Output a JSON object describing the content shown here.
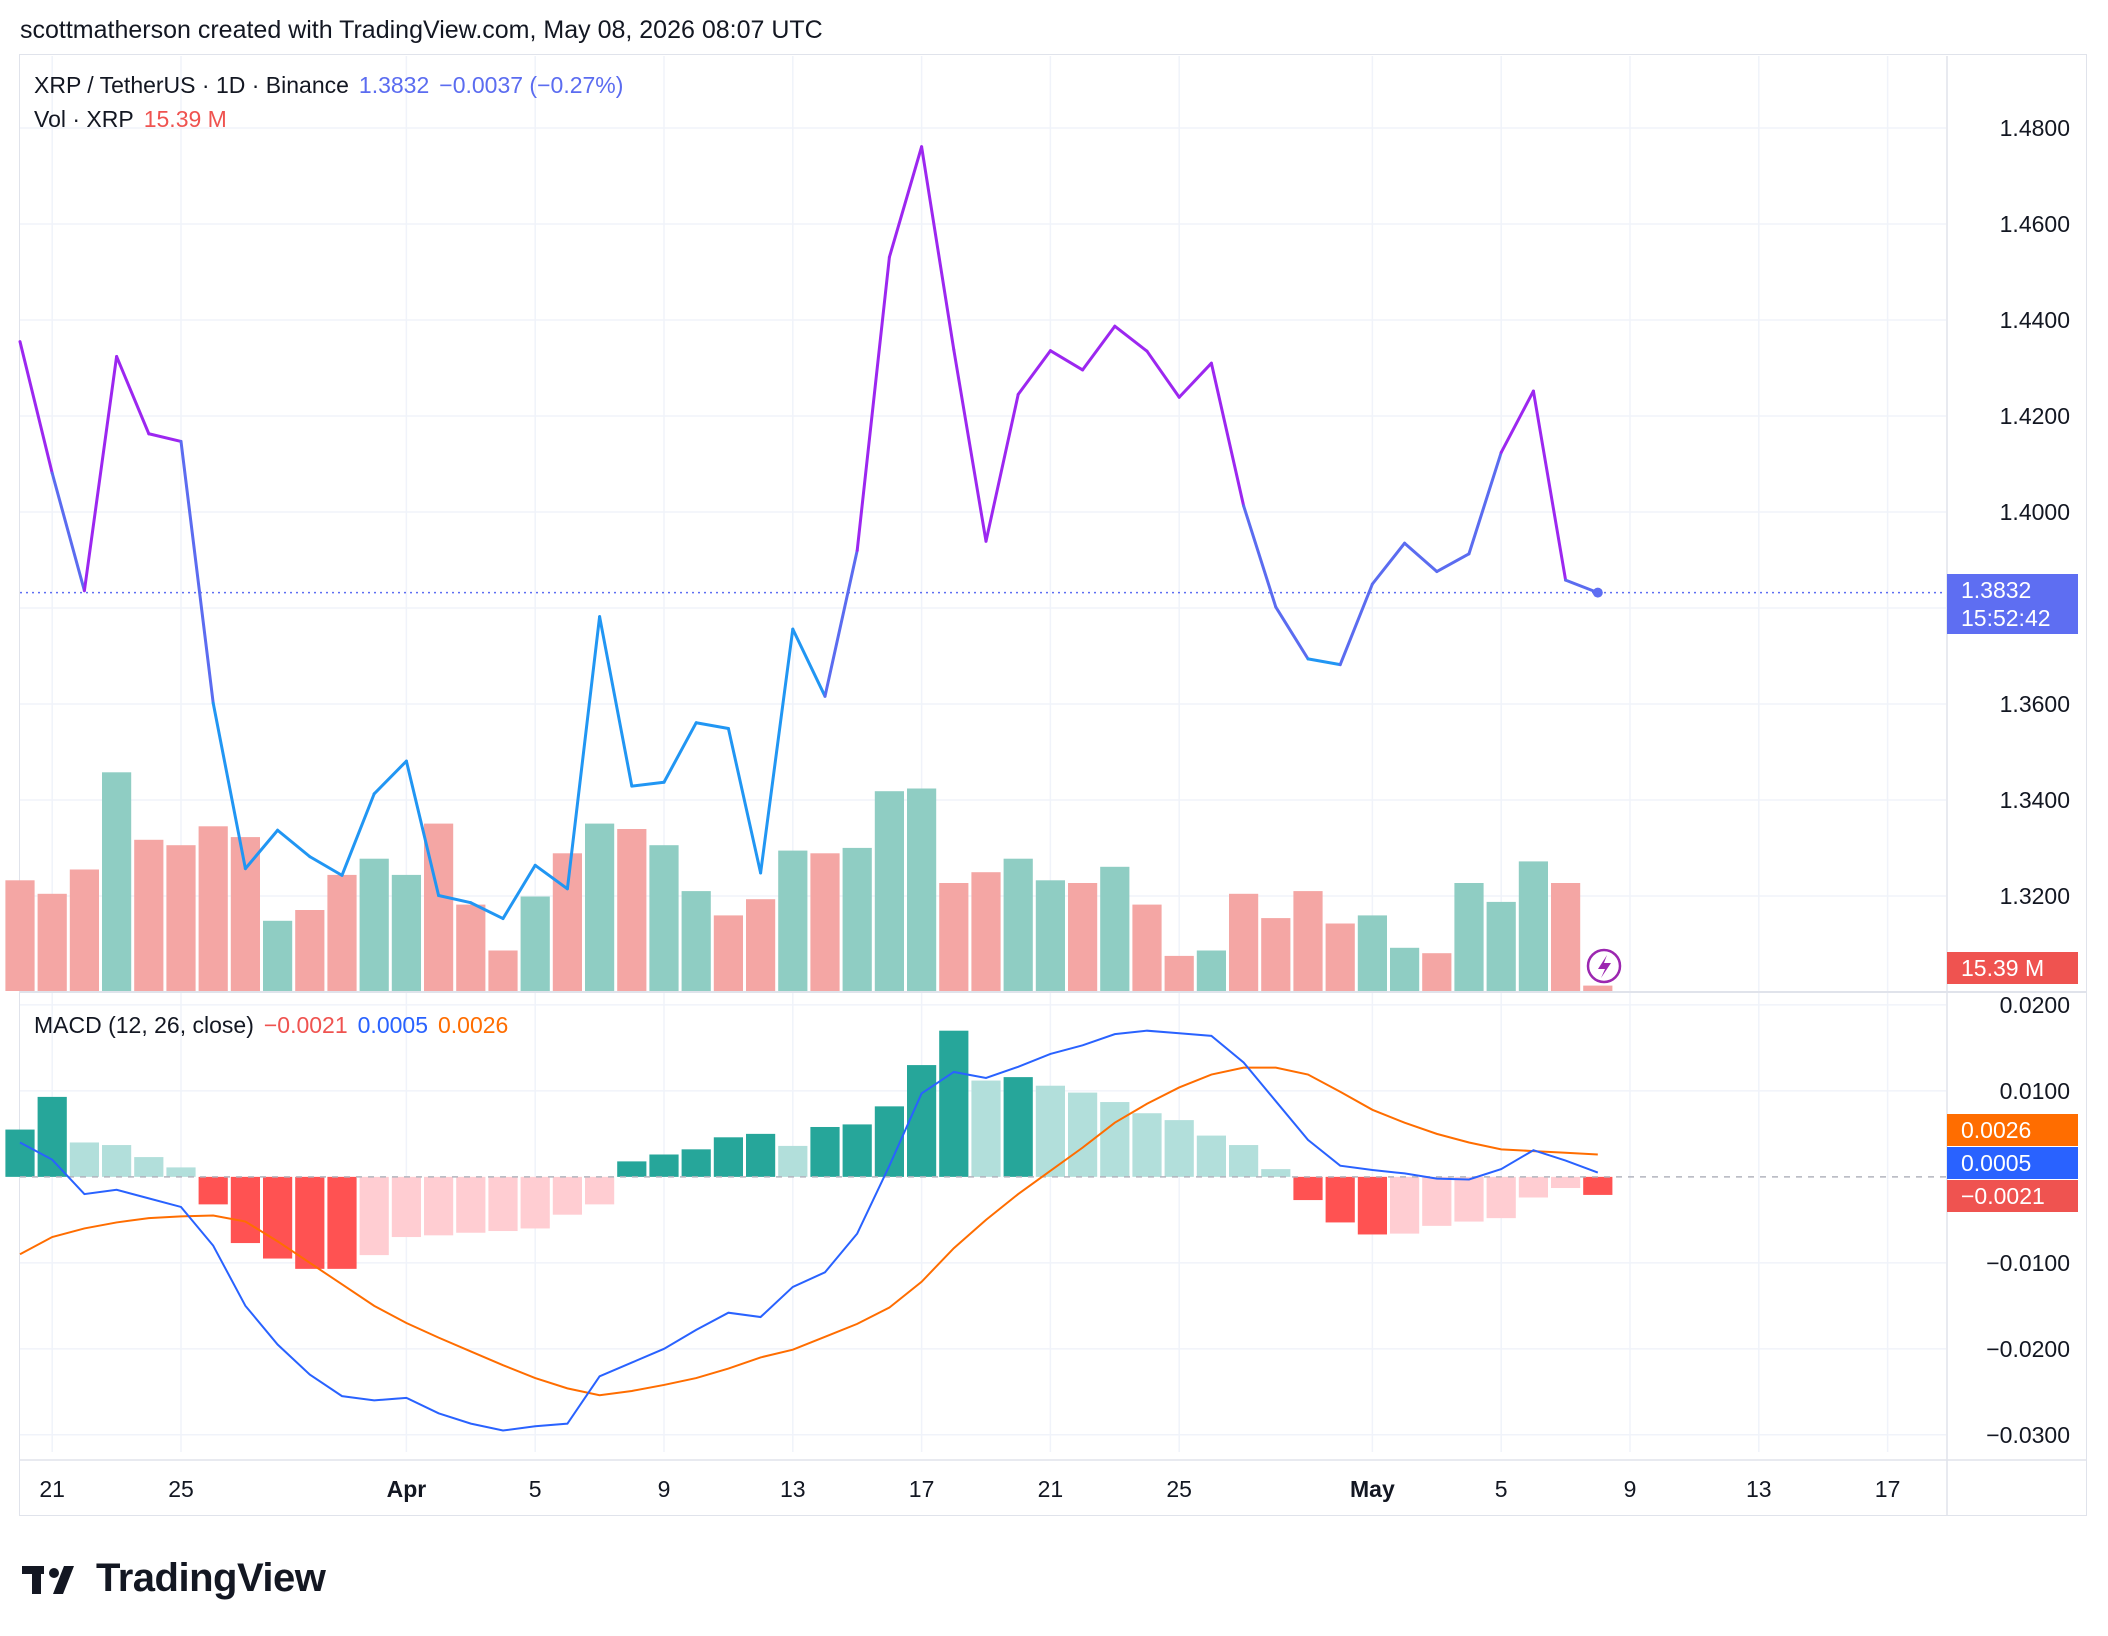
{
  "credit": "scottmatherson created with TradingView.com, May 08, 2026 08:07 UTC",
  "legend": {
    "pair": "XRP / TetherUS · 1D · Binance",
    "price": "1.3832",
    "change": "−0.0037 (−0.27%)",
    "vol_label": "Vol · XRP",
    "vol_value": "15.39 M",
    "macd_label": "MACD (12, 26, close)",
    "macd_hist": "−0.0021",
    "macd_line": "0.0005",
    "macd_signal": "0.0026"
  },
  "tags": {
    "price": "1.3832",
    "countdown": "15:52:42",
    "volume": "15.39 M",
    "signal": "0.0026",
    "macd": "0.0005",
    "hist": "−0.0021"
  },
  "logo_text": "TradingView",
  "colors": {
    "price_up_line": "#9c27f0",
    "price_low_line": "#2196f3",
    "price_mid_line": "#5b6cf0",
    "vol_up": "#8fcdc3",
    "vol_down": "#f4a6a4",
    "hist_up_strong": "#26a69a",
    "hist_up_weak": "#b2dfdb",
    "hist_down_strong": "#ff5252",
    "hist_down_weak": "#ffcdd2",
    "macd_line": "#2962ff",
    "signal_line": "#ff6d00",
    "price_tag": "#5e6ef2",
    "vol_tag": "#ef5350"
  },
  "axes": {
    "price_ticks": [
      "1.4800",
      "1.4600",
      "1.4400",
      "1.4200",
      "1.4000",
      "1.3600",
      "1.3400",
      "1.3200"
    ],
    "macd_ticks": [
      "0.0200",
      "0.0100",
      "−0.0100",
      "−0.0200",
      "−0.0300"
    ],
    "x_ticks": [
      {
        "label": "21",
        "bold": false
      },
      {
        "label": "25",
        "bold": false
      },
      {
        "label": "Apr",
        "bold": true
      },
      {
        "label": "5",
        "bold": false
      },
      {
        "label": "9",
        "bold": false
      },
      {
        "label": "13",
        "bold": false
      },
      {
        "label": "17",
        "bold": false
      },
      {
        "label": "21",
        "bold": false
      },
      {
        "label": "25",
        "bold": false
      },
      {
        "label": "May",
        "bold": true
      },
      {
        "label": "5",
        "bold": false
      },
      {
        "label": "9",
        "bold": false
      },
      {
        "label": "13",
        "bold": false
      },
      {
        "label": "17",
        "bold": false
      }
    ]
  },
  "chart_data": [
    {
      "type": "line",
      "title": "XRP / TetherUS · 1D · Binance",
      "x": [
        "Mar 20",
        "Mar 21",
        "Mar 22",
        "Mar 23",
        "Mar 24",
        "Mar 25",
        "Mar 26",
        "Mar 27",
        "Mar 28",
        "Mar 29",
        "Mar 30",
        "Mar 31",
        "Apr 1",
        "Apr 2",
        "Apr 3",
        "Apr 4",
        "Apr 5",
        "Apr 6",
        "Apr 7",
        "Apr 8",
        "Apr 9",
        "Apr 10",
        "Apr 11",
        "Apr 12",
        "Apr 13",
        "Apr 14",
        "Apr 15",
        "Apr 16",
        "Apr 17",
        "Apr 18",
        "Apr 19",
        "Apr 20",
        "Apr 21",
        "Apr 22",
        "Apr 23",
        "Apr 24",
        "Apr 25",
        "Apr 26",
        "Apr 27",
        "Apr 28",
        "Apr 29",
        "Apr 30",
        "May 1",
        "May 2",
        "May 3",
        "May 4",
        "May 5",
        "May 6",
        "May 7",
        "May 8"
      ],
      "values": [
        1.4355,
        1.4081,
        1.3836,
        1.4324,
        1.4163,
        1.4147,
        1.3602,
        1.3257,
        1.3337,
        1.3282,
        1.3243,
        1.3413,
        1.3481,
        1.3201,
        1.3186,
        1.3153,
        1.3264,
        1.3215,
        1.3782,
        1.3429,
        1.3437,
        1.3561,
        1.3549,
        1.3248,
        1.3756,
        1.3616,
        1.392,
        1.4531,
        1.4761,
        1.4338,
        1.3939,
        1.4245,
        1.4336,
        1.4296,
        1.4387,
        1.4335,
        1.4239,
        1.431,
        1.4013,
        1.3802,
        1.3694,
        1.3682,
        1.385,
        1.3935,
        1.3876,
        1.3913,
        1.4124,
        1.4252,
        1.3858,
        1.3832
      ],
      "ylim": [
        1.3,
        1.495
      ]
    },
    {
      "type": "bar",
      "title": "Vol · XRP",
      "x": [
        "Mar 20",
        "Mar 21",
        "Mar 22",
        "Mar 23",
        "Mar 24",
        "Mar 25",
        "Mar 26",
        "Mar 27",
        "Mar 28",
        "Mar 29",
        "Mar 30",
        "Mar 31",
        "Apr 1",
        "Apr 2",
        "Apr 3",
        "Apr 4",
        "Apr 5",
        "Apr 6",
        "Apr 7",
        "Apr 8",
        "Apr 9",
        "Apr 10",
        "Apr 11",
        "Apr 12",
        "Apr 13",
        "Apr 14",
        "Apr 15",
        "Apr 16",
        "Apr 17",
        "Apr 18",
        "Apr 19",
        "Apr 20",
        "Apr 21",
        "Apr 22",
        "Apr 23",
        "Apr 24",
        "Apr 25",
        "Apr 26",
        "Apr 27",
        "Apr 28",
        "Apr 29",
        "Apr 30",
        "May 1",
        "May 2",
        "May 3",
        "May 4",
        "May 5",
        "May 6",
        "May 7",
        "May 8"
      ],
      "values": [
        0.41,
        0.36,
        0.45,
        0.81,
        0.56,
        0.54,
        0.61,
        0.57,
        0.26,
        0.3,
        0.43,
        0.49,
        0.43,
        0.62,
        0.32,
        0.15,
        0.35,
        0.51,
        0.62,
        0.6,
        0.54,
        0.37,
        0.28,
        0.34,
        0.52,
        0.51,
        0.53,
        0.74,
        0.75,
        0.4,
        0.44,
        0.49,
        0.41,
        0.4,
        0.46,
        0.32,
        0.13,
        0.15,
        0.36,
        0.27,
        0.37,
        0.25,
        0.28,
        0.16,
        0.14,
        0.4,
        0.33,
        0.48,
        0.4,
        0.02
      ],
      "up": [
        false,
        false,
        false,
        true,
        false,
        false,
        false,
        false,
        true,
        false,
        false,
        true,
        true,
        false,
        false,
        false,
        true,
        false,
        true,
        false,
        true,
        true,
        false,
        false,
        true,
        false,
        true,
        true,
        true,
        false,
        false,
        true,
        true,
        false,
        true,
        false,
        false,
        true,
        false,
        false,
        false,
        false,
        true,
        true,
        false,
        true,
        true,
        true,
        false,
        false
      ]
    },
    {
      "type": "line",
      "title": "MACD (12, 26, close)",
      "x": [
        "Mar 20",
        "Mar 21",
        "Mar 22",
        "Mar 23",
        "Mar 24",
        "Mar 25",
        "Mar 26",
        "Mar 27",
        "Mar 28",
        "Mar 29",
        "Mar 30",
        "Mar 31",
        "Apr 1",
        "Apr 2",
        "Apr 3",
        "Apr 4",
        "Apr 5",
        "Apr 6",
        "Apr 7",
        "Apr 8",
        "Apr 9",
        "Apr 10",
        "Apr 11",
        "Apr 12",
        "Apr 13",
        "Apr 14",
        "Apr 15",
        "Apr 16",
        "Apr 17",
        "Apr 18",
        "Apr 19",
        "Apr 20",
        "Apr 21",
        "Apr 22",
        "Apr 23",
        "Apr 24",
        "Apr 25",
        "Apr 26",
        "Apr 27",
        "Apr 28",
        "Apr 29",
        "Apr 30",
        "May 1",
        "May 2",
        "May 3",
        "May 4",
        "May 5",
        "May 6",
        "May 7",
        "May 8"
      ],
      "series": [
        {
          "name": "MACD",
          "values": [
            0.004,
            0.002,
            -0.002,
            -0.0015,
            -0.0025,
            -0.0035,
            -0.008,
            -0.015,
            -0.0195,
            -0.023,
            -0.0255,
            -0.026,
            -0.0257,
            -0.0275,
            -0.0287,
            -0.0295,
            -0.029,
            -0.0287,
            -0.0232,
            -0.0216,
            -0.02,
            -0.0178,
            -0.0158,
            -0.0163,
            -0.0128,
            -0.0111,
            -0.0066,
            0.0013,
            0.0097,
            0.0122,
            0.0115,
            0.0128,
            0.0143,
            0.0153,
            0.0166,
            0.017,
            0.0167,
            0.0164,
            0.0133,
            0.0088,
            0.0043,
            0.0013,
            0.0008,
            0.0004,
            -0.0002,
            -0.0003,
            0.0009,
            0.0031,
            0.0019,
            0.0005
          ]
        },
        {
          "name": "Signal",
          "values": [
            -0.009,
            -0.007,
            -0.006,
            -0.0053,
            -0.0048,
            -0.0046,
            -0.0045,
            -0.0052,
            -0.0075,
            -0.01,
            -0.0125,
            -0.015,
            -0.017,
            -0.0187,
            -0.0203,
            -0.0219,
            -0.0234,
            -0.0246,
            -0.0254,
            -0.0249,
            -0.0242,
            -0.0234,
            -0.0223,
            -0.021,
            -0.0201,
            -0.0186,
            -0.0171,
            -0.0152,
            -0.0122,
            -0.0083,
            -0.005,
            -0.002,
            0.0007,
            0.0034,
            0.0063,
            0.0085,
            0.0104,
            0.0119,
            0.0127,
            0.0127,
            0.0119,
            0.0099,
            0.0078,
            0.0063,
            0.005,
            0.004,
            0.0032,
            0.003,
            0.0028,
            0.0026
          ]
        },
        {
          "name": "Histogram",
          "values": [
            0.0055,
            0.0093,
            0.004,
            0.0037,
            0.0023,
            0.0011,
            -0.0032,
            -0.0077,
            -0.0095,
            -0.0107,
            -0.0107,
            -0.0091,
            -0.007,
            -0.0068,
            -0.0065,
            -0.0063,
            -0.006,
            -0.0044,
            -0.0032,
            0.0018,
            0.0026,
            0.0032,
            0.0046,
            0.005,
            0.0036,
            0.0058,
            0.0061,
            0.0082,
            0.013,
            0.017,
            0.0112,
            0.0116,
            0.0106,
            0.0098,
            0.0087,
            0.0074,
            0.0066,
            0.0048,
            0.0037,
            0.0009,
            -0.0027,
            -0.0053,
            -0.0067,
            -0.0066,
            -0.0057,
            -0.0052,
            -0.0048,
            -0.0024,
            -0.0013,
            -0.0021
          ]
        }
      ],
      "ylim": [
        -0.032,
        0.0215
      ]
    }
  ]
}
